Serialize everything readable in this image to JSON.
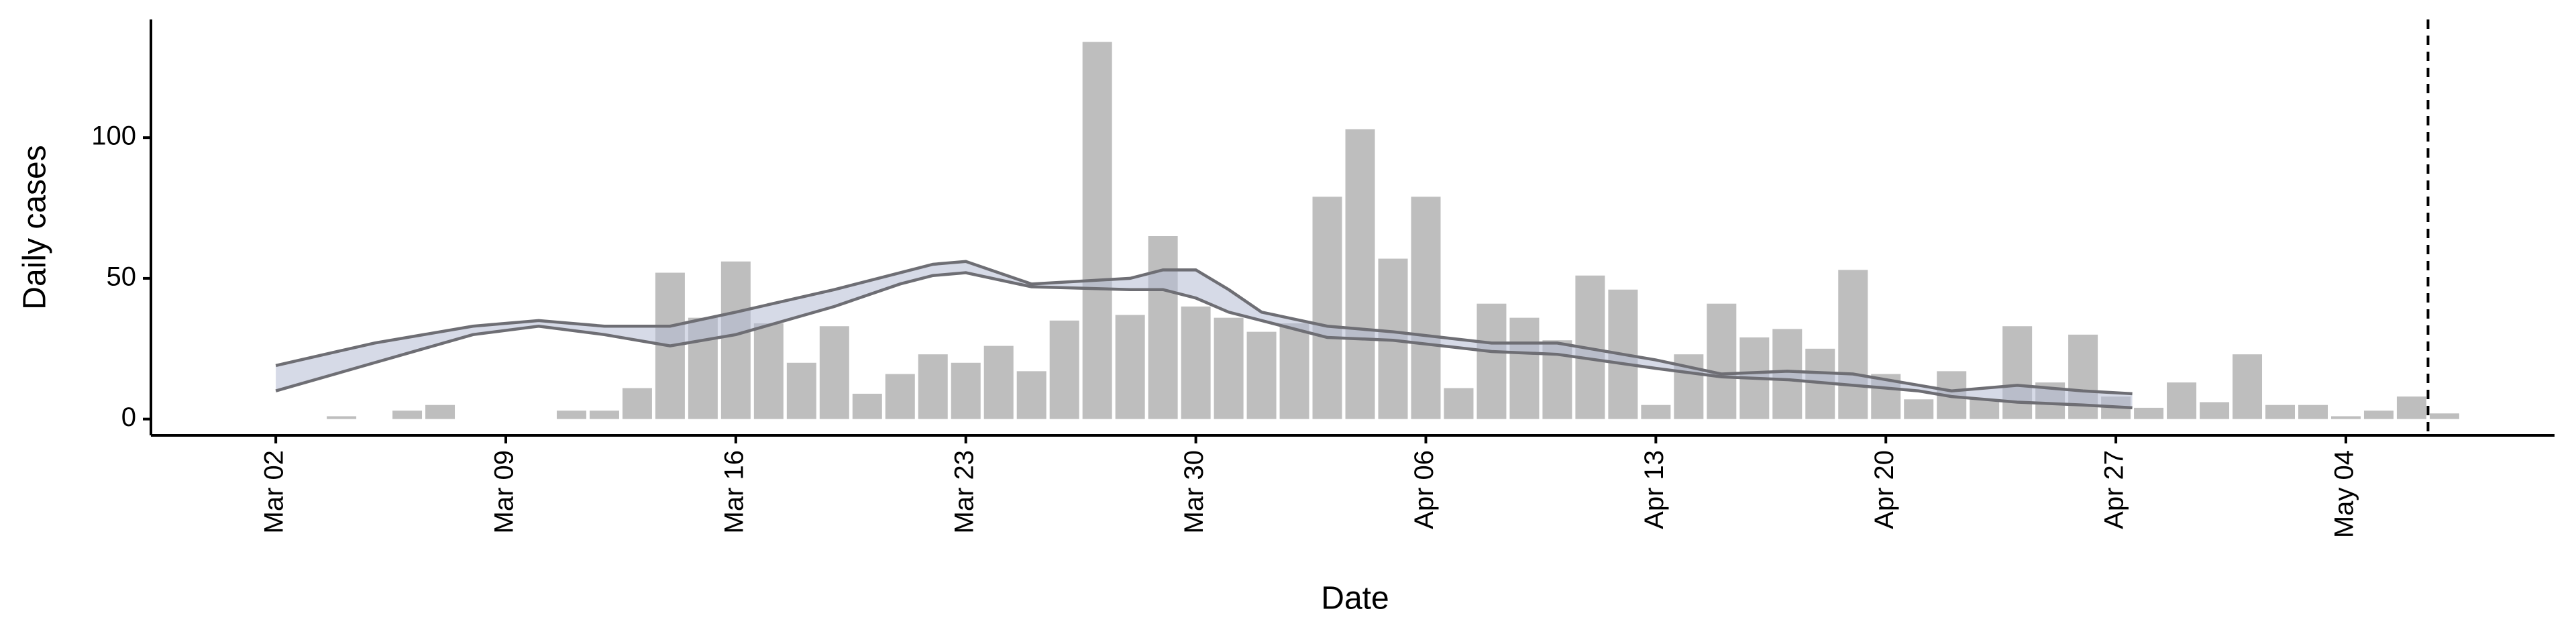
{
  "chart_data": {
    "type": "bar",
    "x_label": "Date",
    "y_label": "Daily cases",
    "x": [
      0,
      1,
      2,
      3,
      4,
      5,
      6,
      7,
      8,
      9,
      10,
      11,
      12,
      13,
      14,
      15,
      16,
      17,
      18,
      19,
      20,
      21,
      22,
      23,
      24,
      25,
      26,
      27,
      28,
      29,
      30,
      31,
      32,
      33,
      34,
      35,
      36,
      37,
      38,
      39,
      40,
      41,
      42,
      43,
      44,
      45,
      46,
      47,
      48,
      49,
      50,
      51,
      52,
      53,
      54,
      55,
      56,
      57,
      58,
      59,
      60,
      61,
      62,
      63,
      64,
      65,
      66
    ],
    "values": [
      0,
      0,
      1,
      0,
      3,
      5,
      0,
      0,
      0,
      3,
      3,
      11,
      52,
      36,
      56,
      34,
      20,
      33,
      9,
      16,
      23,
      20,
      26,
      17,
      35,
      134,
      37,
      65,
      40,
      36,
      31,
      34,
      79,
      103,
      57,
      79,
      11,
      41,
      36,
      28,
      51,
      46,
      5,
      23,
      41,
      29,
      32,
      25,
      53,
      16,
      7,
      17,
      7,
      33,
      13,
      30,
      8,
      4,
      13,
      6,
      23,
      5,
      5,
      1,
      3,
      8,
      2
    ],
    "color": "#bebebe",
    "bounds": {
      "color": "#6e6e74",
      "fill": "#b4bcd4",
      "x": [
        0,
        3,
        6,
        8,
        10,
        12,
        14,
        17,
        19,
        20,
        21,
        23,
        26,
        27,
        28,
        29,
        30,
        32,
        34,
        37,
        39,
        42,
        44,
        46,
        48,
        50,
        51,
        53,
        55,
        56.5
      ],
      "upper": [
        19,
        27,
        33,
        35,
        33,
        33,
        38,
        46,
        52,
        55,
        56,
        48,
        50,
        53,
        53,
        46,
        38,
        33,
        31,
        27,
        27,
        21,
        16,
        17,
        16,
        12,
        10,
        12,
        10,
        9
      ],
      "lower": [
        10,
        20,
        30,
        33,
        30,
        26,
        30,
        40,
        48,
        51,
        52,
        47,
        46,
        46,
        43,
        38,
        35,
        29,
        28,
        24,
        23,
        18,
        15,
        14,
        12,
        10,
        8,
        6,
        5,
        4
      ]
    },
    "vline_x": 65.5,
    "xlim": [
      -3.8,
      69.35
    ],
    "xticks": [
      {
        "value": 0,
        "label": "Mar 02"
      },
      {
        "value": 7,
        "label": "Mar 09"
      },
      {
        "value": 14,
        "label": "Mar 16"
      },
      {
        "value": 21,
        "label": "Mar 23"
      },
      {
        "value": 28,
        "label": "Mar 30"
      },
      {
        "value": 35,
        "label": "Apr 06"
      },
      {
        "value": 42,
        "label": "Apr 13"
      },
      {
        "value": 49,
        "label": "Apr 20"
      },
      {
        "value": 56,
        "label": "Apr 27"
      },
      {
        "value": 63,
        "label": "May 04"
      }
    ],
    "ylim": [
      -5.8,
      142
    ],
    "yticks": [
      0,
      50,
      100
    ]
  }
}
